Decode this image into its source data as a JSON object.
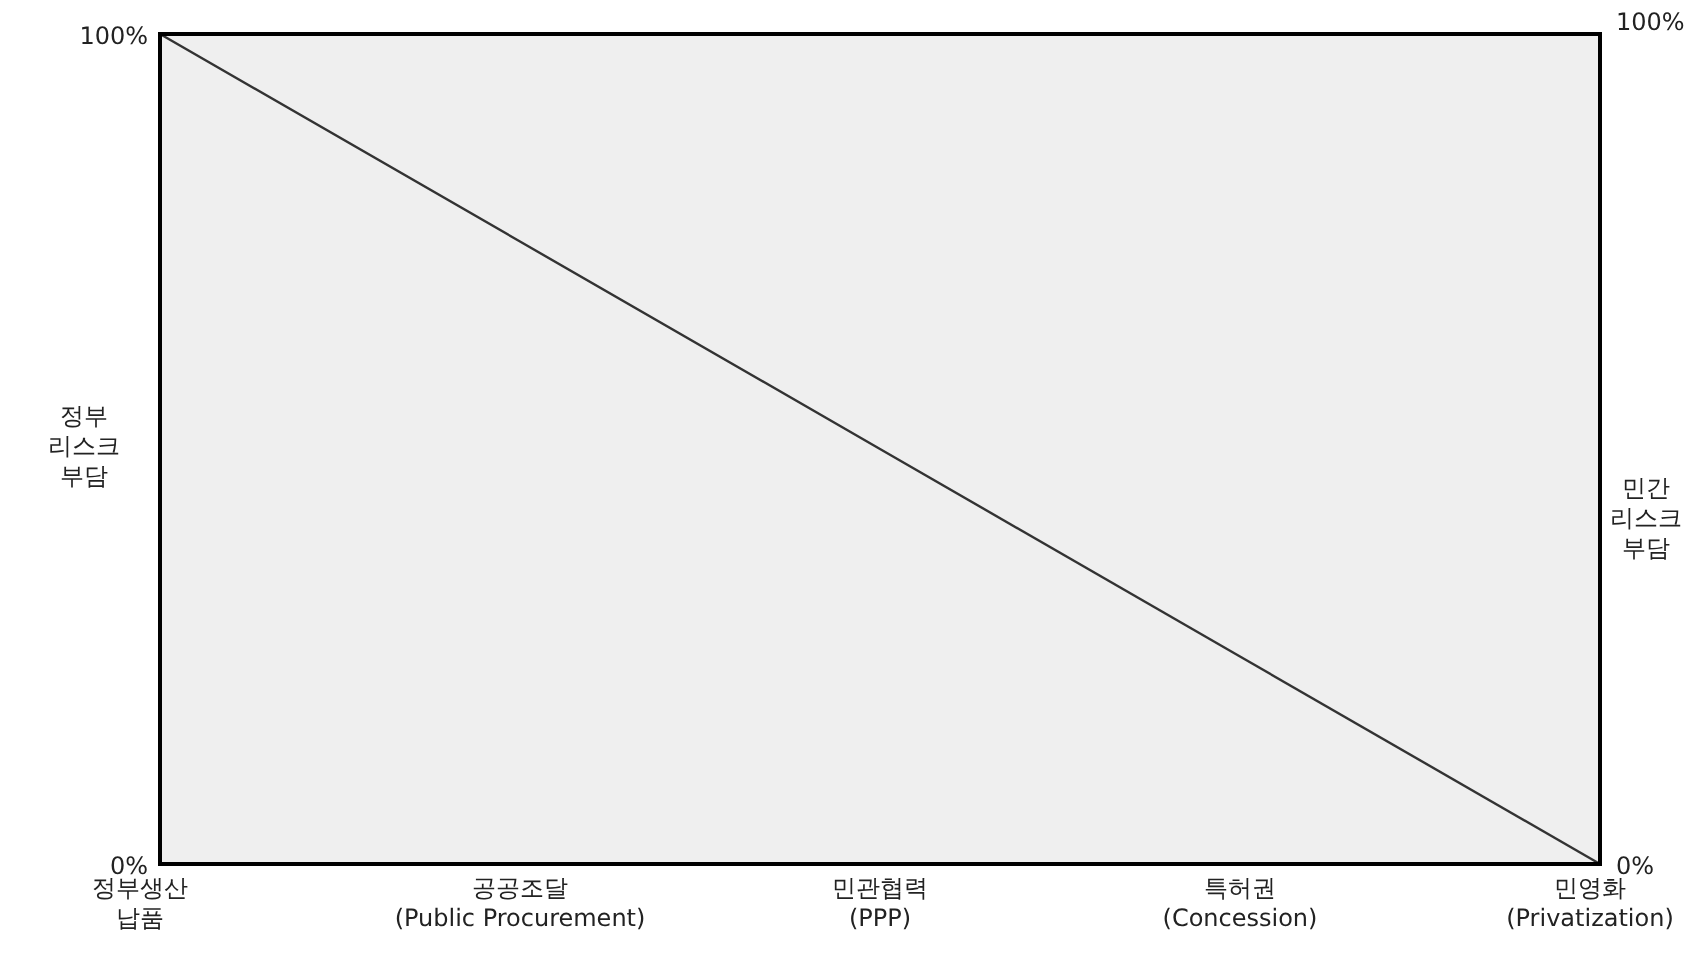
{
  "chart_data": {
    "type": "line",
    "categories": [
      "정부생산\n납품",
      "공공조달\n(Public Procurement)",
      "민관협력\n(PPP)",
      "특허권\n(Concession)",
      "민영화\n(Privatization)"
    ],
    "series": [
      {
        "color": "#333333",
        "values": [
          100,
          75,
          50,
          25,
          0
        ]
      }
    ],
    "ylabel": "정부\n리스크\n부담",
    "y2label": "민간\n리스크\n부담",
    "ylim": [
      0,
      100
    ],
    "yticks": [
      {
        "value": 0,
        "label": "0%"
      },
      {
        "value": 100,
        "label": "100%"
      }
    ],
    "y2lim": [
      0,
      100
    ],
    "y2ticks": [
      {
        "value": 0,
        "label": "0%"
      },
      {
        "value": 100,
        "label": "100%"
      }
    ],
    "marker": "none",
    "line_style": "solid"
  }
}
